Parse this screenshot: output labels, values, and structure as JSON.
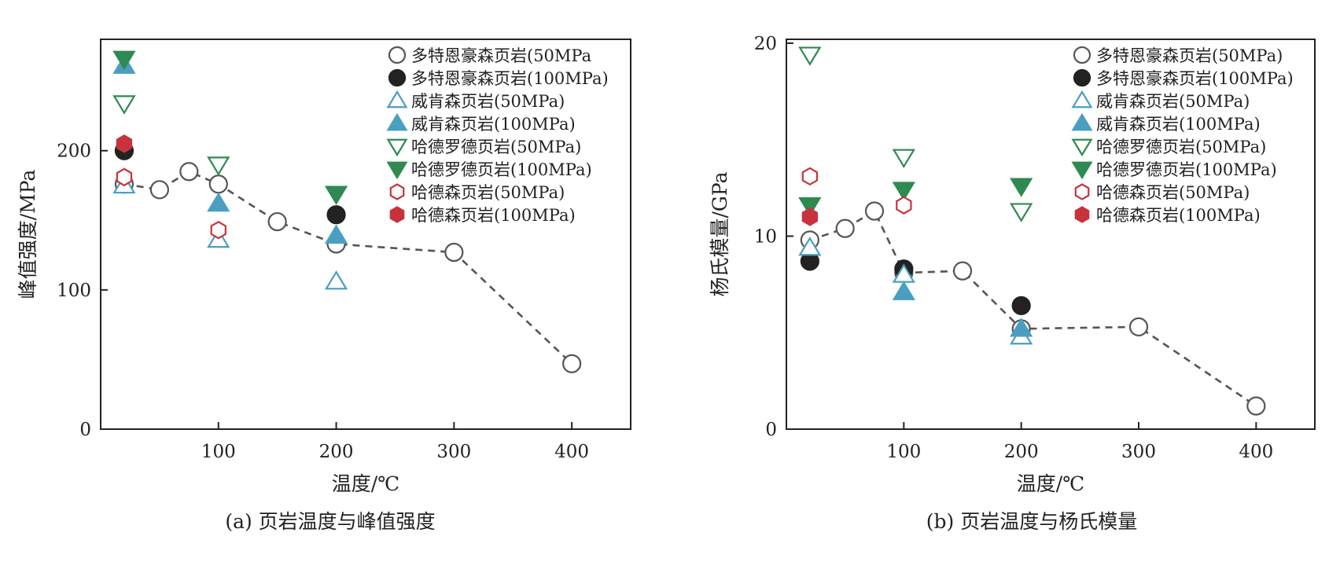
{
  "colors": {
    "open_circle": "#555555",
    "filled_circle": "#222222",
    "teal": "#4a9fc0",
    "green": "#2e8a50",
    "red": "#c8323c",
    "trend_line": "#555555"
  },
  "chart_data": [
    {
      "type": "scatter",
      "caption": "(a)  页岩温度与峰值强度",
      "xlabel": "温度/℃",
      "ylabel": "峰值强度/MPa",
      "xlim": [
        0,
        450
      ],
      "ylim": [
        0,
        280
      ],
      "xticks": [
        100,
        200,
        300,
        400
      ],
      "yticks": [
        0,
        100,
        200
      ],
      "grid": false,
      "legend_position": "top-right",
      "trend_series": "多特恩豪森页岩(50MPa",
      "series": [
        {
          "name": "多特恩豪森页岩(50MPa",
          "marker": "circle",
          "filled": false,
          "color": "#555555",
          "points": [
            [
              20,
              176
            ],
            [
              50,
              172
            ],
            [
              75,
              185
            ],
            [
              100,
              176
            ],
            [
              150,
              149
            ],
            [
              200,
              133
            ],
            [
              300,
              127
            ],
            [
              400,
              47
            ]
          ]
        },
        {
          "name": "多特恩豪森页岩(100MPa)",
          "marker": "circle",
          "filled": true,
          "color": "#222222",
          "points": [
            [
              20,
              200
            ],
            [
              200,
              154
            ]
          ]
        },
        {
          "name": "威肯森页岩(50MPa)",
          "marker": "triangle-up",
          "filled": false,
          "color": "#4a9fc0",
          "points": [
            [
              20,
              175
            ],
            [
              100,
              136
            ],
            [
              200,
              106
            ]
          ]
        },
        {
          "name": "威肯森页岩(100MPa)",
          "marker": "triangle-up",
          "filled": true,
          "color": "#4a9fc0",
          "points": [
            [
              20,
              261
            ],
            [
              100,
              162
            ],
            [
              200,
              139
            ]
          ]
        },
        {
          "name": "哈德罗德页岩(50MPa)",
          "marker": "triangle-down",
          "filled": false,
          "color": "#2e8a50",
          "points": [
            [
              20,
              234
            ],
            [
              100,
              190
            ]
          ]
        },
        {
          "name": "哈德罗德页岩(100MPa)",
          "marker": "triangle-down",
          "filled": true,
          "color": "#2e8a50",
          "points": [
            [
              20,
              266
            ],
            [
              200,
              169
            ]
          ]
        },
        {
          "name": "哈德森页岩(50MPa)",
          "marker": "hexagon",
          "filled": false,
          "color": "#c8323c",
          "points": [
            [
              20,
              181
            ],
            [
              100,
              143
            ]
          ]
        },
        {
          "name": "哈德森页岩(100MPa)",
          "marker": "hexagon",
          "filled": true,
          "color": "#c8323c",
          "points": [
            [
              20,
              205
            ]
          ]
        }
      ]
    },
    {
      "type": "scatter",
      "caption": "(b)  页岩温度与杨氏模量",
      "xlabel": "温度/℃",
      "ylabel": "杨氏模量/GPa",
      "xlim": [
        0,
        450
      ],
      "ylim": [
        0,
        20.2
      ],
      "xticks": [
        100,
        200,
        300,
        400
      ],
      "yticks": [
        0,
        10,
        20
      ],
      "grid": false,
      "legend_position": "top-right",
      "trend_series": "多特恩豪森页岩(50MPa)",
      "series": [
        {
          "name": "多特恩豪森页岩(50MPa)",
          "marker": "circle",
          "filled": false,
          "color": "#555555",
          "points": [
            [
              20,
              9.8
            ],
            [
              50,
              10.4
            ],
            [
              75,
              11.3
            ],
            [
              100,
              8.1
            ],
            [
              150,
              8.2
            ],
            [
              200,
              5.2
            ],
            [
              300,
              5.3
            ],
            [
              400,
              1.2
            ]
          ]
        },
        {
          "name": "多特恩豪森页岩(100MPa)",
          "marker": "circle",
          "filled": true,
          "color": "#222222",
          "points": [
            [
              20,
              8.7
            ],
            [
              100,
              8.3
            ],
            [
              200,
              6.4
            ]
          ]
        },
        {
          "name": "威肯森页岩(50MPa)",
          "marker": "triangle-up",
          "filled": false,
          "color": "#4a9fc0",
          "points": [
            [
              20,
              9.4
            ],
            [
              100,
              8.0
            ],
            [
              200,
              4.8
            ]
          ]
        },
        {
          "name": "威肯森页岩(100MPa)",
          "marker": "triangle-up",
          "filled": true,
          "color": "#4a9fc0",
          "points": [
            [
              100,
              7.1
            ],
            [
              200,
              5.2
            ]
          ]
        },
        {
          "name": "哈德罗德页岩(50MPa)",
          "marker": "triangle-down",
          "filled": false,
          "color": "#2e8a50",
          "points": [
            [
              20,
              19.4
            ],
            [
              100,
              14.1
            ],
            [
              200,
              11.3
            ]
          ]
        },
        {
          "name": "哈德罗德页岩(100MPa)",
          "marker": "triangle-down",
          "filled": true,
          "color": "#2e8a50",
          "points": [
            [
              20,
              11.6
            ],
            [
              100,
              12.4
            ],
            [
              200,
              12.6
            ]
          ]
        },
        {
          "name": "哈德森页岩(50MPa)",
          "marker": "hexagon",
          "filled": false,
          "color": "#c8323c",
          "points": [
            [
              20,
              13.1
            ],
            [
              100,
              11.6
            ]
          ]
        },
        {
          "name": "哈德森页岩(100MPa)",
          "marker": "hexagon",
          "filled": true,
          "color": "#c8323c",
          "points": [
            [
              20,
              11.0
            ]
          ]
        }
      ]
    }
  ]
}
